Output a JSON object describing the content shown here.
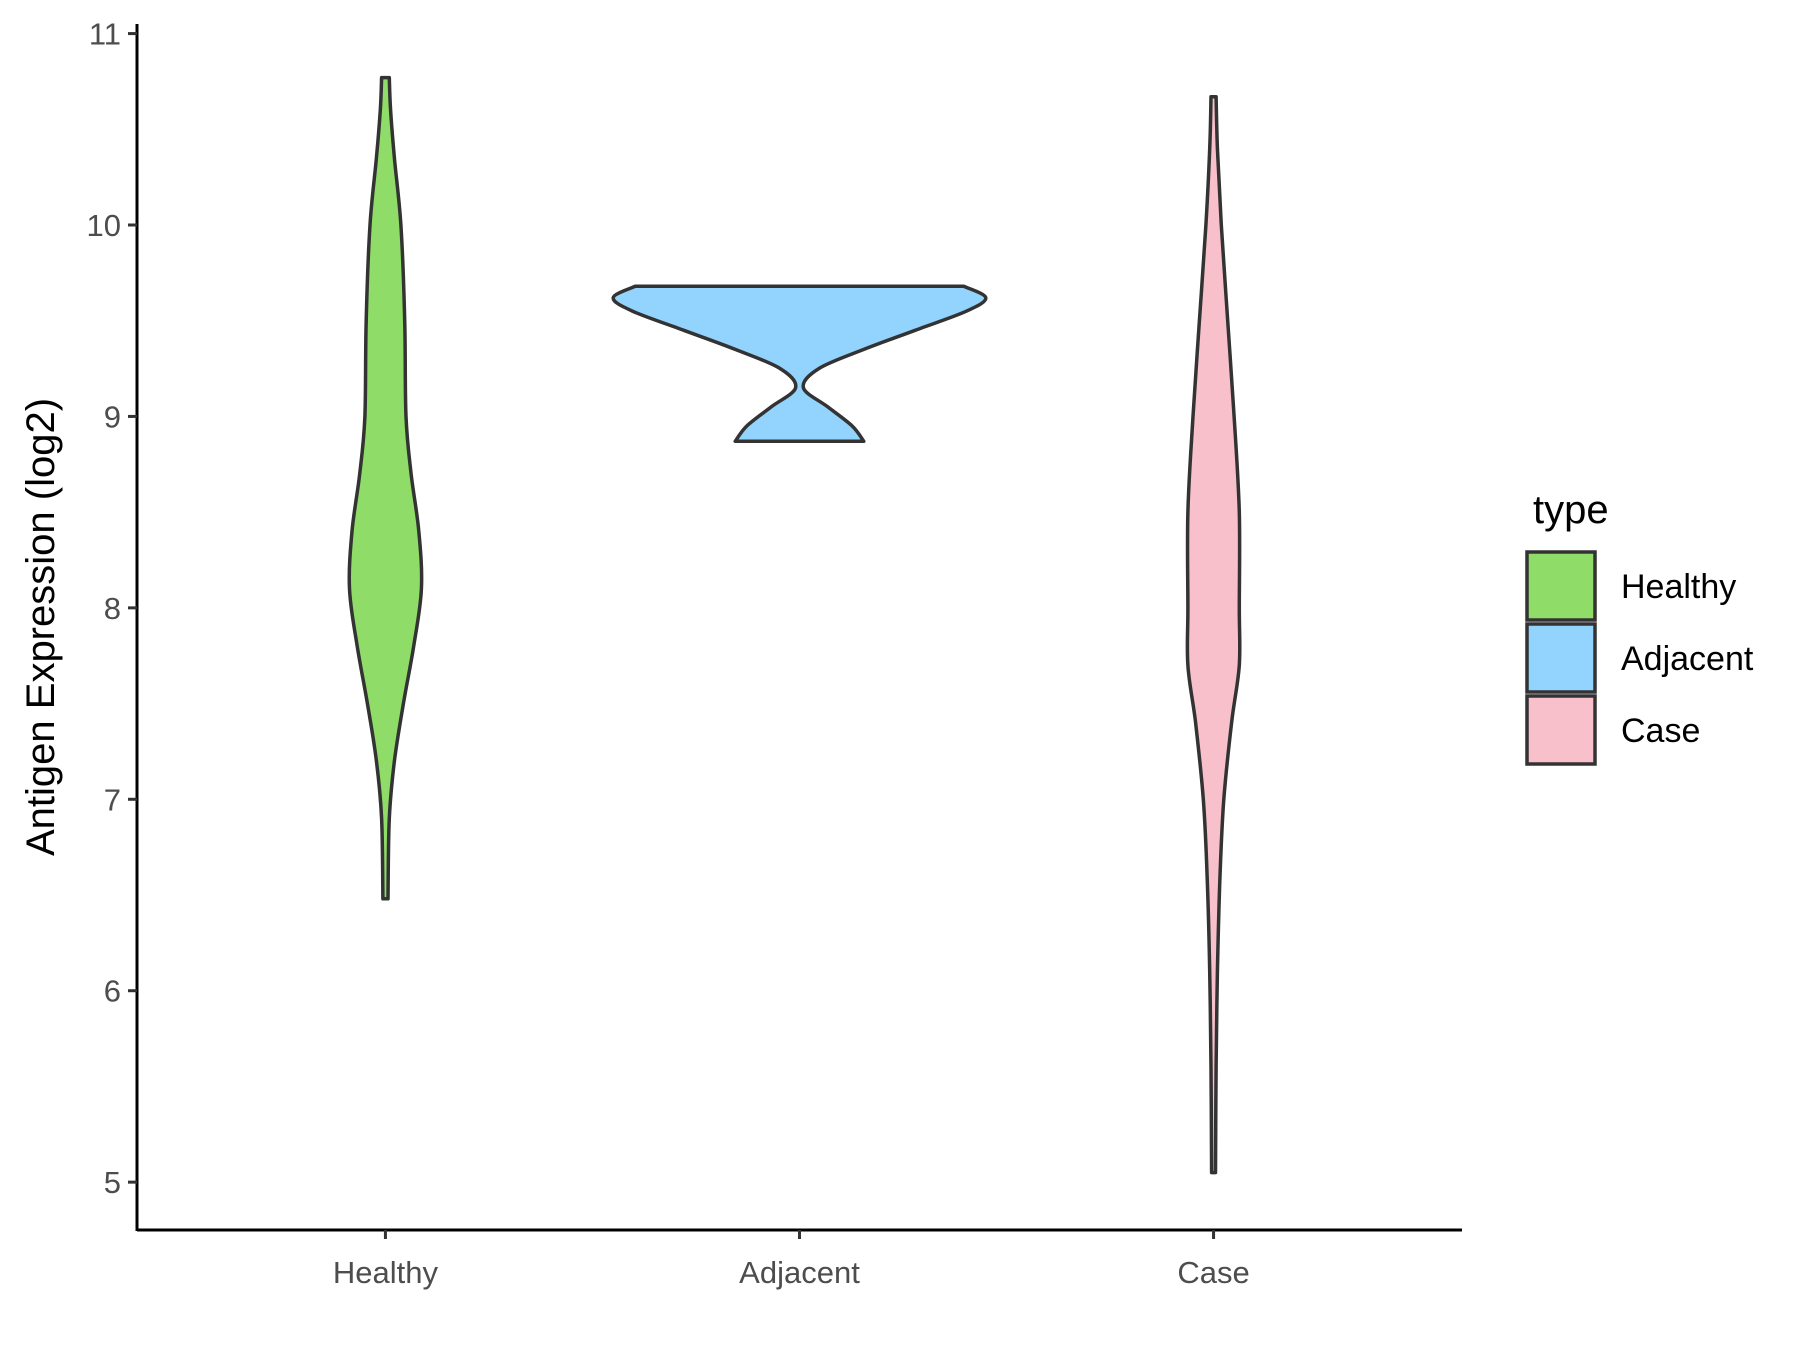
{
  "chart_data": {
    "type": "violin",
    "ylabel": "Antigen Expression (log2)",
    "xlabel": "",
    "ylim": [
      4.75,
      11.05
    ],
    "yticks": [
      5,
      6,
      7,
      8,
      9,
      10,
      11
    ],
    "categories": [
      "Healthy",
      "Adjacent",
      "Case"
    ],
    "grid": false,
    "legend": {
      "title": "type",
      "position": "right",
      "entries": [
        "Healthy",
        "Adjacent",
        "Case"
      ]
    },
    "series": [
      {
        "name": "Healthy",
        "color": "#90dc68",
        "min": 6.48,
        "max": 10.77,
        "density_profile": [
          [
            6.48,
            0.02
          ],
          [
            6.9,
            0.03
          ],
          [
            7.2,
            0.07
          ],
          [
            7.5,
            0.14
          ],
          [
            7.8,
            0.22
          ],
          [
            8.1,
            0.28
          ],
          [
            8.4,
            0.26
          ],
          [
            8.7,
            0.2
          ],
          [
            9.0,
            0.16
          ],
          [
            9.5,
            0.15
          ],
          [
            10.0,
            0.12
          ],
          [
            10.35,
            0.07
          ],
          [
            10.6,
            0.04
          ],
          [
            10.77,
            0.03
          ]
        ]
      },
      {
        "name": "Adjacent",
        "color": "#93d4fe",
        "min": 8.87,
        "max": 9.68,
        "density_profile": [
          [
            8.87,
            0.5
          ],
          [
            8.95,
            0.41
          ],
          [
            9.05,
            0.22
          ],
          [
            9.15,
            0.03
          ],
          [
            9.25,
            0.15
          ],
          [
            9.35,
            0.5
          ],
          [
            9.45,
            0.9
          ],
          [
            9.55,
            1.3
          ],
          [
            9.62,
            1.45
          ],
          [
            9.68,
            1.28
          ]
        ]
      },
      {
        "name": "Case",
        "color": "#f7c0cb",
        "min": 5.05,
        "max": 10.67,
        "density_profile": [
          [
            5.05,
            0.015
          ],
          [
            5.6,
            0.02
          ],
          [
            6.1,
            0.03
          ],
          [
            6.6,
            0.05
          ],
          [
            7.0,
            0.08
          ],
          [
            7.4,
            0.14
          ],
          [
            7.7,
            0.2
          ],
          [
            8.0,
            0.2
          ],
          [
            8.5,
            0.2
          ],
          [
            9.0,
            0.16
          ],
          [
            9.5,
            0.11
          ],
          [
            10.0,
            0.06
          ],
          [
            10.4,
            0.03
          ],
          [
            10.67,
            0.02
          ]
        ]
      }
    ]
  }
}
